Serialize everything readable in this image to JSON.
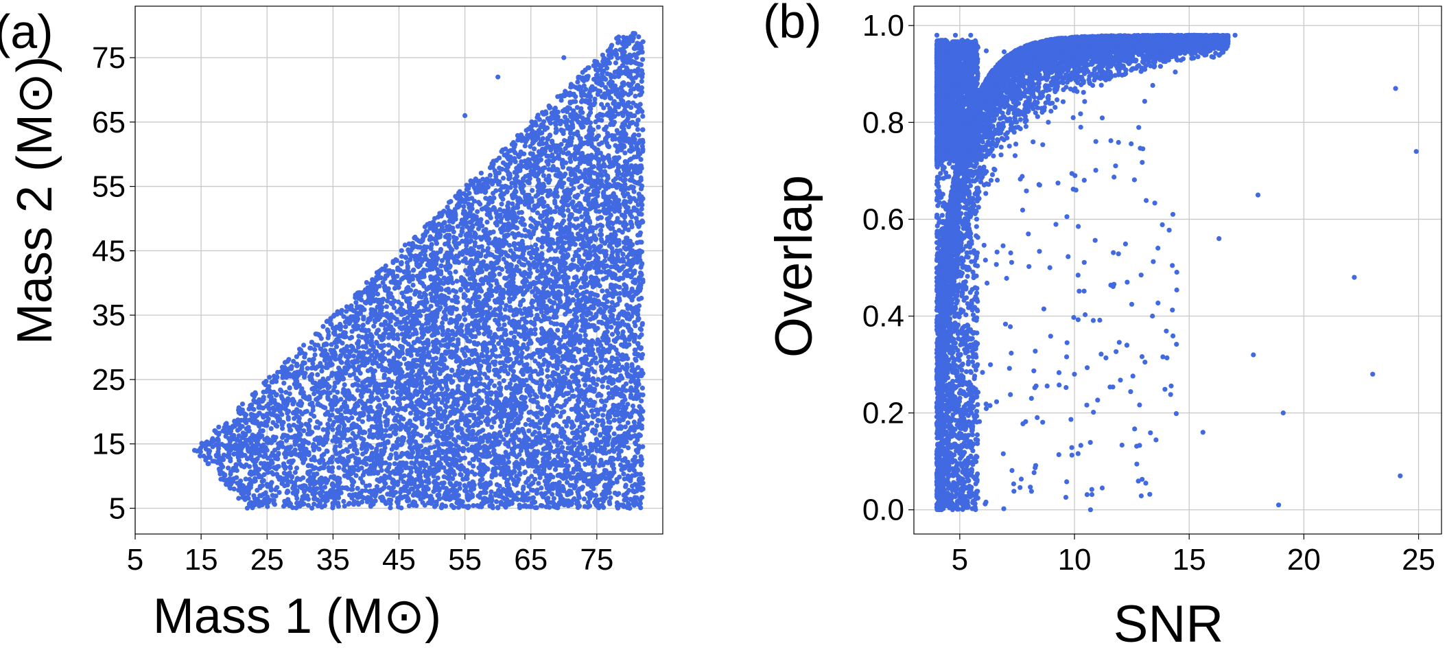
{
  "panels": [
    {
      "tag": "(a)",
      "chart_data": {
        "type": "scatter",
        "title": "",
        "xlabel": "Mass 1 (M⊙)",
        "ylabel": "Mass 2 (M⊙)",
        "xlim": [
          5,
          85
        ],
        "ylim": [
          1,
          83
        ],
        "xticks": [
          5,
          15,
          25,
          35,
          45,
          55,
          65,
          75
        ],
        "yticks": [
          5,
          15,
          25,
          35,
          45,
          55,
          65,
          75
        ],
        "xtick_labels": [
          "5",
          "15",
          "25",
          "35",
          "45",
          "55",
          "65",
          "75"
        ],
        "ytick_labels": [
          "5",
          "15",
          "25",
          "35",
          "45",
          "55",
          "65",
          "75"
        ],
        "grid": true,
        "marker_color": "#4169E1",
        "point_count": 9000,
        "distribution": "uniform in component masses, m1 in [14, 82], m2 in [5, m1], m2 <= 79",
        "points_sample": [
          [
            14,
            14
          ],
          [
            20,
            8
          ],
          [
            30,
            20
          ],
          [
            45,
            40
          ],
          [
            55,
            66
          ],
          [
            60,
            72
          ],
          [
            70,
            75
          ],
          [
            78,
            78
          ],
          [
            80,
            5
          ],
          [
            82,
            8
          ],
          [
            25,
            6
          ],
          [
            40,
            30
          ],
          [
            65,
            50
          ],
          [
            75,
            60
          ],
          [
            35,
            33
          ],
          [
            50,
            12
          ],
          [
            70,
            20
          ],
          [
            78,
            45
          ]
        ]
      }
    },
    {
      "tag": "(b)",
      "chart_data": {
        "type": "scatter",
        "title": "",
        "xlabel": "SNR",
        "ylabel": "Overlap",
        "xlim": [
          3.0,
          26.0
        ],
        "ylim": [
          -0.05,
          1.04
        ],
        "xticks": [
          5,
          10,
          15,
          20,
          25
        ],
        "yticks": [
          0.0,
          0.2,
          0.4,
          0.6,
          0.8,
          1.0
        ],
        "xtick_labels": [
          "5",
          "10",
          "15",
          "20",
          "25"
        ],
        "ytick_labels": [
          "0.0",
          "0.2",
          "0.4",
          "0.6",
          "0.8",
          "1.0"
        ],
        "grid": true,
        "marker_color": "#4169E1",
        "point_count": 9000,
        "distribution": "dense near SNR 4-6 across overlap 0-1, saturating toward overlap ~0.98 as SNR increases to ~16",
        "points_sample": [
          [
            4.2,
            0.0
          ],
          [
            4.5,
            0.3
          ],
          [
            4.8,
            0.6
          ],
          [
            5.0,
            0.85
          ],
          [
            8.0,
            0.95
          ],
          [
            12.0,
            0.97
          ],
          [
            15.0,
            0.98
          ],
          [
            17.0,
            0.98
          ],
          [
            18.0,
            0.65
          ],
          [
            22.2,
            0.48
          ],
          [
            23.0,
            0.28
          ],
          [
            24.2,
            0.07
          ],
          [
            19.1,
            0.2
          ],
          [
            18.9,
            0.01
          ],
          [
            10.7,
            0.0
          ],
          [
            15.6,
            0.16
          ],
          [
            24.9,
            0.74
          ],
          [
            24.0,
            0.87
          ],
          [
            17.8,
            0.32
          ],
          [
            16.3,
            0.56
          ],
          [
            10.0,
            0.28
          ],
          [
            12.3,
            0.47
          ],
          [
            13.4,
            0.4
          ]
        ]
      }
    }
  ]
}
